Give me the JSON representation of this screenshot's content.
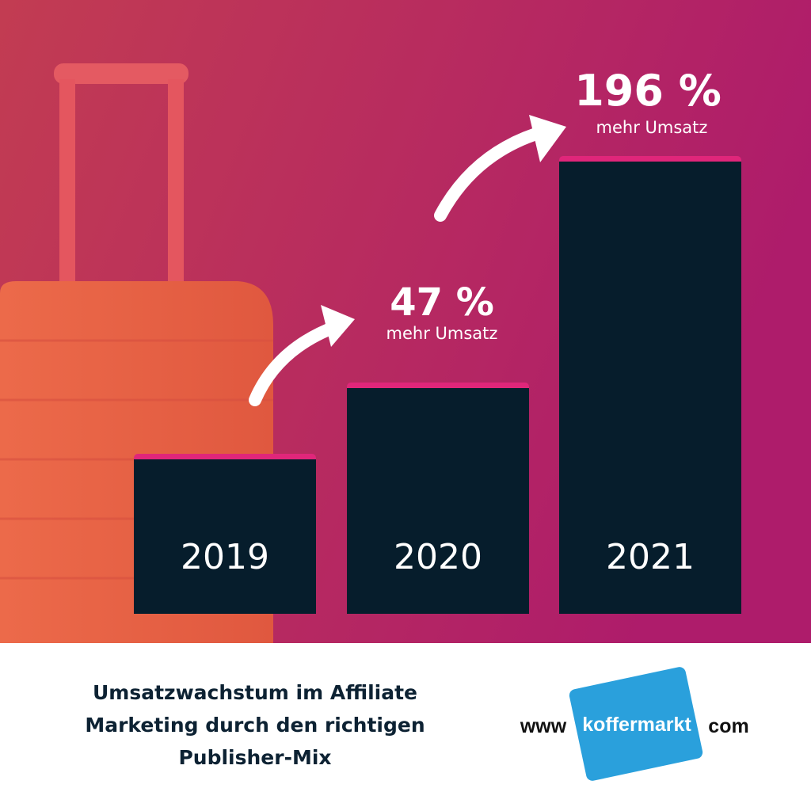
{
  "bars": [
    {
      "label": "2019"
    },
    {
      "label": "2020"
    },
    {
      "label": "2021"
    }
  ],
  "annotations": [
    {
      "value": "47 %",
      "caption": "mehr Umsatz"
    },
    {
      "value": "196 %",
      "caption": "mehr Umsatz"
    }
  ],
  "footer": {
    "text_lines": [
      "Umsatzwachstum im Affiliate",
      "Marketing durch den richtigen",
      "Publisher-Mix"
    ]
  },
  "logo": {
    "prefix": "www",
    "name": "koffermarkt",
    "suffix": "com"
  }
}
